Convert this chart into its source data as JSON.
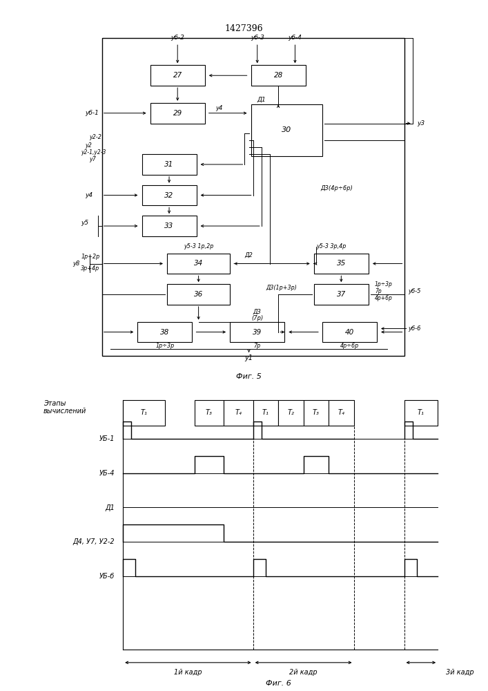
{
  "title": "1427396",
  "fig5_caption": "Фиг. 5",
  "fig6_caption": "Фиг. 6",
  "background_color": "#ffffff",
  "line_color": "#000000",
  "box_color": "#ffffff",
  "text_color": "#000000"
}
